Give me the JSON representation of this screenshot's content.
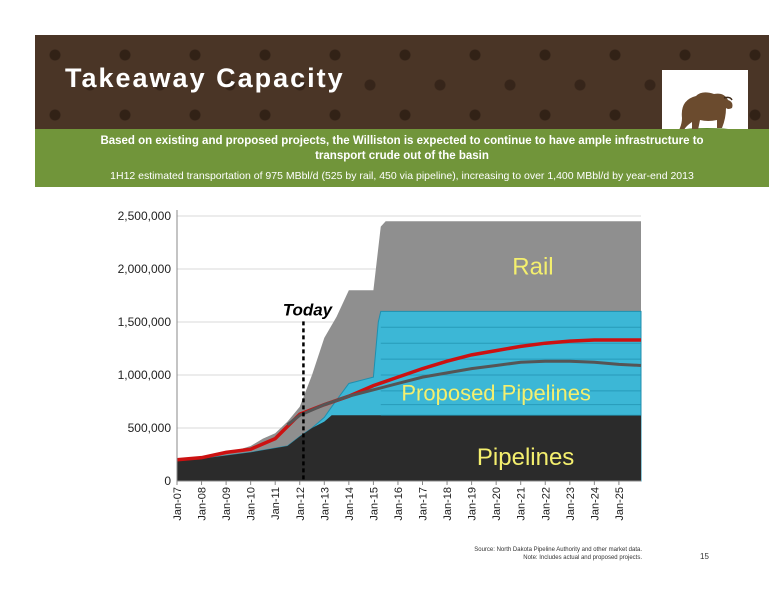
{
  "slide": {
    "title": "Takeaway Capacity",
    "subtitle": "Based on existing and proposed projects, the Williston is expected to continue to have ample infrastructure to transport crude out of the basin",
    "note": "1H12 estimated transportation of 975 MBbl/d (525 by rail, 450 via pipeline), increasing to over 1,400 MBbl/d by year-end 2013",
    "source_line1": "Source: North Dakota Pipeline Authority and other market data.",
    "source_line2": "Note: Includes actual and proposed projects.",
    "page_number": "15"
  },
  "chart_data": {
    "type": "area",
    "x_start_year": 2007,
    "x_end_year": 2025.9,
    "ylim": [
      0,
      2500000
    ],
    "yticks": [
      0,
      500000,
      1000000,
      1500000,
      2000000,
      2500000
    ],
    "ytick_labels": [
      "0",
      "500,000",
      "1,000,000",
      "1,500,000",
      "2,000,000",
      "2,500,000"
    ],
    "xtick_labels": [
      "Jan-07",
      "Jan-08",
      "Jan-09",
      "Jan-10",
      "Jan-11",
      "Jan-12",
      "Jan-13",
      "Jan-14",
      "Jan-15",
      "Jan-16",
      "Jan-17",
      "Jan-18",
      "Jan-19",
      "Jan-20",
      "Jan-21",
      "Jan-22",
      "Jan-23",
      "Jan-24",
      "Jan-25"
    ],
    "grid": true,
    "colors": {
      "pipelines": "#2b2b2b",
      "proposed": "#3cb7d6",
      "rail": "#8f8f8f",
      "red_line": "#cc1111",
      "gray_line": "#555555",
      "rail_label": "#f4ef6e",
      "proposed_label": "#f4ef6e",
      "pipelines_label": "#f4ef6e"
    },
    "series": [
      {
        "name": "Pipelines",
        "points": [
          [
            2007,
            200000
          ],
          [
            2008,
            210000
          ],
          [
            2009,
            240000
          ],
          [
            2010,
            270000
          ],
          [
            2011,
            310000
          ],
          [
            2011.5,
            330000
          ],
          [
            2012,
            420000
          ],
          [
            2012.5,
            500000
          ],
          [
            2013,
            560000
          ],
          [
            2013.3,
            620000
          ],
          [
            2025.9,
            620000
          ]
        ]
      },
      {
        "name": "Proposed Pipelines",
        "points": [
          [
            2007,
            200000
          ],
          [
            2008,
            210000
          ],
          [
            2009,
            240000
          ],
          [
            2010,
            270000
          ],
          [
            2011,
            310000
          ],
          [
            2011.5,
            330000
          ],
          [
            2012,
            420000
          ],
          [
            2012.5,
            500000
          ],
          [
            2013,
            600000
          ],
          [
            2013.3,
            700000
          ],
          [
            2014,
            920000
          ],
          [
            2015,
            980000
          ],
          [
            2015.2,
            1500000
          ],
          [
            2015.3,
            1600000
          ],
          [
            2025.9,
            1600000
          ]
        ]
      },
      {
        "name": "Rail",
        "points": [
          [
            2007,
            200000
          ],
          [
            2008,
            220000
          ],
          [
            2009,
            260000
          ],
          [
            2010,
            330000
          ],
          [
            2010.5,
            400000
          ],
          [
            2011,
            450000
          ],
          [
            2011.5,
            560000
          ],
          [
            2012,
            700000
          ],
          [
            2012.5,
            1000000
          ],
          [
            2013,
            1350000
          ],
          [
            2013.5,
            1550000
          ],
          [
            2014,
            1800000
          ],
          [
            2015,
            1800000
          ],
          [
            2015.3,
            2400000
          ],
          [
            2015.5,
            2450000
          ],
          [
            2025.9,
            2450000
          ]
        ]
      }
    ],
    "lines": [
      {
        "name": "red-line",
        "points": [
          [
            2007,
            200000
          ],
          [
            2008,
            220000
          ],
          [
            2009,
            270000
          ],
          [
            2010,
            300000
          ],
          [
            2011,
            400000
          ],
          [
            2012,
            630000
          ],
          [
            2013,
            720000
          ],
          [
            2014,
            800000
          ],
          [
            2015,
            900000
          ],
          [
            2016,
            980000
          ],
          [
            2017,
            1060000
          ],
          [
            2018,
            1130000
          ],
          [
            2019,
            1190000
          ],
          [
            2020,
            1230000
          ],
          [
            2021,
            1270000
          ],
          [
            2022,
            1300000
          ],
          [
            2023,
            1320000
          ],
          [
            2024,
            1330000
          ],
          [
            2025,
            1330000
          ],
          [
            2025.9,
            1330000
          ]
        ]
      },
      {
        "name": "gray-line",
        "points": [
          [
            2011.5,
            530000
          ],
          [
            2012,
            620000
          ],
          [
            2013,
            720000
          ],
          [
            2014,
            800000
          ],
          [
            2015,
            860000
          ],
          [
            2016,
            920000
          ],
          [
            2017,
            980000
          ],
          [
            2018,
            1020000
          ],
          [
            2019,
            1060000
          ],
          [
            2020,
            1090000
          ],
          [
            2021,
            1120000
          ],
          [
            2022,
            1130000
          ],
          [
            2023,
            1130000
          ],
          [
            2024,
            1120000
          ],
          [
            2025,
            1100000
          ],
          [
            2025.9,
            1090000
          ]
        ]
      }
    ],
    "annotations": {
      "today_label": "Today",
      "today_x": 2012.15,
      "rail_label": "Rail",
      "proposed_label": "Proposed Pipelines",
      "pipelines_label": "Pipelines"
    }
  }
}
